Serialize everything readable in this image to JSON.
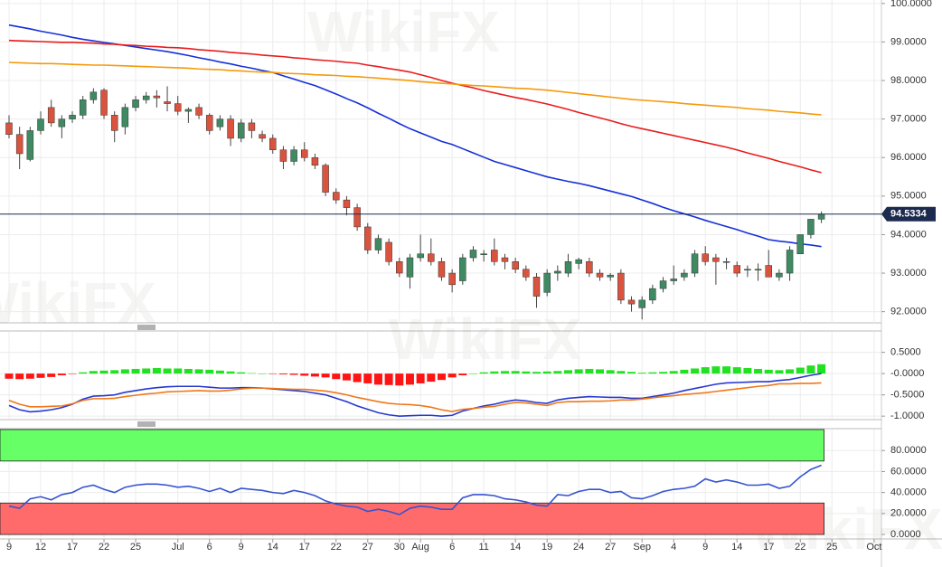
{
  "chart_data": [
    {
      "type": "candlestick",
      "categories": [
        "9",
        null,
        null,
        "12",
        null,
        null,
        "17",
        null,
        null,
        "22",
        null,
        null,
        "25",
        null,
        null,
        null,
        "Jul",
        null,
        null,
        "6",
        null,
        null,
        "9",
        null,
        null,
        "14",
        null,
        null,
        "17",
        null,
        null,
        "22",
        null,
        null,
        "27",
        null,
        null,
        "30",
        null,
        "Aug",
        null,
        null,
        "6",
        null,
        null,
        "11",
        null,
        null,
        "14",
        null,
        null,
        "19",
        null,
        null,
        "24",
        null,
        null,
        "27",
        null,
        null,
        "Sep",
        null,
        null,
        "4",
        null,
        null,
        "9",
        null,
        null,
        "14",
        null,
        null,
        "17",
        null,
        null,
        "22",
        null,
        null,
        "25",
        null,
        null,
        null,
        "Oct"
      ],
      "open": [
        96.9,
        96.6,
        95.95,
        96.7,
        97.3,
        96.8,
        97.0,
        97.1,
        97.5,
        97.75,
        97.1,
        96.8,
        97.3,
        97.5,
        97.6,
        97.45,
        97.4,
        97.2,
        97.3,
        97.1,
        96.8,
        97.0,
        96.5,
        96.9,
        96.6,
        96.5,
        96.2,
        95.9,
        96.2,
        96.0,
        95.8,
        95.1,
        94.9,
        94.7,
        94.2,
        93.6,
        93.8,
        93.3,
        92.9,
        93.4,
        93.5,
        93.3,
        93.0,
        92.8,
        93.4,
        93.5,
        93.6,
        93.4,
        93.3,
        93.1,
        92.9,
        92.5,
        93.0,
        93.0,
        93.25,
        93.3,
        93.0,
        92.9,
        93.0,
        92.3,
        92.1,
        92.3,
        92.6,
        92.8,
        92.9,
        93.0,
        93.5,
        93.4,
        93.3,
        93.2,
        93.1,
        93.1,
        93.2,
        92.9,
        93.0,
        93.5,
        94.0,
        94.4,
        null,
        null,
        null,
        null,
        null
      ],
      "high": [
        97.1,
        96.8,
        96.8,
        97.2,
        97.5,
        97.1,
        97.2,
        97.6,
        97.8,
        97.8,
        97.2,
        97.4,
        97.6,
        97.7,
        97.75,
        97.85,
        97.6,
        97.3,
        97.4,
        97.15,
        97.1,
        97.1,
        97.0,
        97.0,
        96.7,
        96.6,
        96.3,
        96.3,
        96.4,
        96.1,
        95.85,
        95.2,
        95.0,
        94.8,
        94.3,
        94.0,
        93.9,
        93.4,
        93.5,
        94.0,
        93.9,
        93.4,
        93.1,
        93.5,
        93.7,
        93.6,
        93.9,
        93.5,
        93.4,
        93.2,
        93.0,
        93.1,
        93.2,
        93.5,
        93.4,
        93.4,
        93.1,
        93.0,
        93.1,
        92.4,
        92.4,
        92.7,
        92.9,
        93.2,
        93.1,
        93.6,
        93.7,
        93.5,
        93.4,
        93.3,
        93.2,
        93.25,
        93.6,
        93.1,
        93.7,
        94.0,
        94.4,
        94.6,
        null,
        null,
        null,
        null,
        null
      ],
      "low": [
        96.5,
        95.7,
        95.9,
        96.6,
        96.8,
        96.5,
        96.9,
        97.0,
        97.4,
        97.0,
        96.4,
        96.6,
        97.2,
        97.4,
        97.3,
        97.2,
        97.1,
        96.9,
        97.0,
        96.6,
        96.7,
        96.3,
        96.4,
        96.5,
        96.4,
        96.1,
        95.7,
        95.8,
        95.9,
        95.7,
        95.0,
        94.8,
        94.5,
        94.1,
        93.5,
        93.5,
        93.2,
        92.9,
        92.6,
        93.3,
        93.2,
        92.8,
        92.5,
        92.7,
        93.3,
        93.3,
        93.2,
        93.1,
        93.0,
        92.8,
        92.1,
        92.4,
        92.8,
        92.9,
        93.1,
        92.9,
        92.8,
        92.8,
        92.2,
        92.0,
        91.8,
        92.2,
        92.5,
        92.7,
        92.8,
        92.9,
        93.2,
        92.7,
        93.1,
        92.9,
        92.9,
        92.8,
        92.9,
        92.8,
        92.8,
        93.5,
        93.9,
        94.3,
        null,
        null,
        null,
        null,
        null
      ],
      "close": [
        96.6,
        96.1,
        96.7,
        97.0,
        96.9,
        97.0,
        97.1,
        97.5,
        97.7,
        97.1,
        96.7,
        97.3,
        97.5,
        97.6,
        97.55,
        97.4,
        97.2,
        97.25,
        97.1,
        96.7,
        97.0,
        96.5,
        96.9,
        96.7,
        96.5,
        96.2,
        95.9,
        96.2,
        96.0,
        95.8,
        95.1,
        94.9,
        94.7,
        94.2,
        93.6,
        93.9,
        93.3,
        93.0,
        93.4,
        93.5,
        93.3,
        92.9,
        92.7,
        93.4,
        93.6,
        93.5,
        93.3,
        93.3,
        93.1,
        92.9,
        92.4,
        93.0,
        93.05,
        93.3,
        93.35,
        93.0,
        92.9,
        92.95,
        92.3,
        92.2,
        92.3,
        92.6,
        92.8,
        92.85,
        93.0,
        93.5,
        93.3,
        93.3,
        93.3,
        93.0,
        93.1,
        93.1,
        92.9,
        93.0,
        93.6,
        94.0,
        94.4,
        94.5334,
        null,
        null,
        null,
        null,
        null
      ],
      "up_color": "#3f8a62",
      "down_color": "#d9533f",
      "lines": [
        {
          "color": "#1530d8",
          "values": [
            99.44,
            99.39,
            99.34,
            99.28,
            99.23,
            99.18,
            99.12,
            99.07,
            99.03,
            98.99,
            98.95,
            98.91,
            98.87,
            98.83,
            98.79,
            98.75,
            98.7,
            98.65,
            98.59,
            98.54,
            98.48,
            98.43,
            98.37,
            98.32,
            98.26,
            98.21,
            98.12,
            98.04,
            97.95,
            97.87,
            97.76,
            97.65,
            97.53,
            97.42,
            97.29,
            97.15,
            97.02,
            96.88,
            96.75,
            96.64,
            96.53,
            96.42,
            96.34,
            96.23,
            96.12,
            96.01,
            95.9,
            95.82,
            95.74,
            95.66,
            95.58,
            95.5,
            95.44,
            95.38,
            95.33,
            95.27,
            95.2,
            95.13,
            95.06,
            94.99,
            94.9,
            94.81,
            94.71,
            94.62,
            94.54,
            94.46,
            94.37,
            94.29,
            94.21,
            94.13,
            94.04,
            93.96,
            93.87,
            93.83,
            93.8,
            93.76,
            93.73,
            93.69,
            null,
            null,
            null,
            null,
            null
          ]
        },
        {
          "color": "#e81c1c",
          "values": [
            99.04,
            99.03,
            99.02,
            99.01,
            99.0,
            98.99,
            98.99,
            98.98,
            98.97,
            98.95,
            98.94,
            98.92,
            98.91,
            98.89,
            98.88,
            98.86,
            98.85,
            98.83,
            98.8,
            98.78,
            98.76,
            98.73,
            98.71,
            98.69,
            98.66,
            98.64,
            98.62,
            98.59,
            98.57,
            98.54,
            98.52,
            98.5,
            98.47,
            98.45,
            98.4,
            98.36,
            98.31,
            98.27,
            98.22,
            98.15,
            98.08,
            98.0,
            97.93,
            97.87,
            97.81,
            97.74,
            97.68,
            97.62,
            97.56,
            97.51,
            97.45,
            97.39,
            97.32,
            97.25,
            97.17,
            97.1,
            97.03,
            96.96,
            96.88,
            96.81,
            96.75,
            96.69,
            96.63,
            96.57,
            96.51,
            96.45,
            96.39,
            96.33,
            96.27,
            96.2,
            96.12,
            96.05,
            95.98,
            95.9,
            95.83,
            95.76,
            95.68,
            95.61,
            null,
            null,
            null,
            null,
            null
          ]
        },
        {
          "color": "#f59a0a",
          "values": [
            98.47,
            98.46,
            98.45,
            98.44,
            98.44,
            98.43,
            98.42,
            98.41,
            98.4,
            98.4,
            98.39,
            98.38,
            98.37,
            98.36,
            98.35,
            98.34,
            98.33,
            98.32,
            98.3,
            98.29,
            98.28,
            98.26,
            98.25,
            98.23,
            98.22,
            98.21,
            98.19,
            98.18,
            98.17,
            98.15,
            98.14,
            98.13,
            98.11,
            98.1,
            98.08,
            98.06,
            98.04,
            98.02,
            98.0,
            97.97,
            97.95,
            97.93,
            97.91,
            97.89,
            97.87,
            97.86,
            97.84,
            97.82,
            97.8,
            97.79,
            97.77,
            97.75,
            97.72,
            97.69,
            97.66,
            97.63,
            97.6,
            97.57,
            97.54,
            97.51,
            97.49,
            97.47,
            97.45,
            97.43,
            97.4,
            97.38,
            97.36,
            97.34,
            97.32,
            97.3,
            97.27,
            97.25,
            97.23,
            97.2,
            97.18,
            97.16,
            97.13,
            97.11,
            null,
            null,
            null,
            null,
            null
          ]
        }
      ],
      "last_price": 94.5334,
      "last_price_color": "#1b2a4e",
      "ylim": [
        91.71,
        100.09
      ],
      "yticks": [
        {
          "value": 92,
          "label": "92.0000"
        },
        {
          "value": 93,
          "label": "93.0000"
        },
        {
          "value": 94,
          "label": "94.0000"
        },
        {
          "value": 95,
          "label": "95.0000"
        },
        {
          "value": 96,
          "label": "96.0000"
        },
        {
          "value": 97,
          "label": "97.0000"
        },
        {
          "value": 98,
          "label": "98.0000"
        },
        {
          "value": 99,
          "label": "99.0000"
        },
        {
          "value": 100,
          "label": "100.0000"
        }
      ],
      "grid": true
    },
    {
      "type": "macd",
      "histogram": {
        "up_color": "#22e022",
        "down_color": "#ff1414",
        "values": [
          -0.12,
          -0.13,
          -0.12,
          -0.1,
          -0.08,
          -0.04,
          -0.01,
          0.03,
          0.06,
          0.07,
          0.08,
          0.1,
          0.11,
          0.12,
          0.13,
          0.12,
          0.12,
          0.11,
          0.1,
          0.09,
          0.07,
          0.05,
          0.03,
          0.01,
          0.0,
          -0.01,
          -0.02,
          -0.03,
          -0.05,
          -0.07,
          -0.09,
          -0.13,
          -0.16,
          -0.2,
          -0.23,
          -0.26,
          -0.27,
          -0.28,
          -0.26,
          -0.23,
          -0.19,
          -0.15,
          -0.09,
          -0.04,
          0.0,
          0.03,
          0.05,
          0.06,
          0.06,
          0.05,
          0.04,
          0.05,
          0.06,
          0.08,
          0.1,
          0.11,
          0.1,
          0.08,
          0.06,
          0.04,
          0.02,
          0.03,
          0.04,
          0.06,
          0.09,
          0.12,
          0.15,
          0.17,
          0.17,
          0.15,
          0.13,
          0.11,
          0.09,
          0.08,
          0.1,
          0.14,
          0.19,
          0.22,
          null,
          null,
          null,
          null,
          null
        ]
      },
      "series": [
        {
          "color": "#2638d0",
          "values": [
            -0.75,
            -0.85,
            -0.9,
            -0.88,
            -0.85,
            -0.8,
            -0.72,
            -0.6,
            -0.53,
            -0.52,
            -0.5,
            -0.44,
            -0.4,
            -0.36,
            -0.33,
            -0.31,
            -0.3,
            -0.3,
            -0.3,
            -0.32,
            -0.34,
            -0.34,
            -0.33,
            -0.33,
            -0.34,
            -0.36,
            -0.38,
            -0.4,
            -0.42,
            -0.46,
            -0.5,
            -0.58,
            -0.66,
            -0.76,
            -0.84,
            -0.92,
            -0.97,
            -1.0,
            -0.99,
            -0.98,
            -0.98,
            -1.0,
            -0.98,
            -0.88,
            -0.82,
            -0.76,
            -0.72,
            -0.66,
            -0.62,
            -0.64,
            -0.68,
            -0.7,
            -0.62,
            -0.58,
            -0.56,
            -0.54,
            -0.55,
            -0.56,
            -0.56,
            -0.58,
            -0.58,
            -0.54,
            -0.5,
            -0.46,
            -0.4,
            -0.35,
            -0.3,
            -0.25,
            -0.22,
            -0.21,
            -0.2,
            -0.19,
            -0.19,
            -0.16,
            -0.14,
            -0.09,
            -0.04,
            0.0,
            null,
            null,
            null,
            null,
            null
          ]
        },
        {
          "color": "#f07818",
          "values": [
            -0.63,
            -0.72,
            -0.78,
            -0.78,
            -0.77,
            -0.76,
            -0.71,
            -0.63,
            -0.59,
            -0.59,
            -0.58,
            -0.54,
            -0.51,
            -0.48,
            -0.46,
            -0.43,
            -0.42,
            -0.41,
            -0.4,
            -0.41,
            -0.41,
            -0.39,
            -0.36,
            -0.34,
            -0.34,
            -0.35,
            -0.36,
            -0.37,
            -0.37,
            -0.39,
            -0.41,
            -0.45,
            -0.5,
            -0.56,
            -0.61,
            -0.66,
            -0.7,
            -0.72,
            -0.73,
            -0.75,
            -0.79,
            -0.85,
            -0.89,
            -0.84,
            -0.82,
            -0.79,
            -0.77,
            -0.72,
            -0.68,
            -0.69,
            -0.72,
            -0.75,
            -0.68,
            -0.66,
            -0.66,
            -0.65,
            -0.65,
            -0.64,
            -0.62,
            -0.62,
            -0.6,
            -0.57,
            -0.54,
            -0.52,
            -0.49,
            -0.47,
            -0.45,
            -0.42,
            -0.39,
            -0.36,
            -0.33,
            -0.3,
            -0.28,
            -0.24,
            -0.24,
            -0.23,
            -0.23,
            -0.22,
            null,
            null,
            null,
            null,
            null
          ]
        }
      ],
      "ylim": [
        -1.06,
        0.98
      ],
      "yticks": [
        {
          "value": -1,
          "label": "-1.0000"
        },
        {
          "value": -0.5,
          "label": "-0.5000"
        },
        {
          "value": 0,
          "label": "-0.0000"
        },
        {
          "value": 0.5,
          "label": "0.5000"
        }
      ],
      "grid": true
    },
    {
      "type": "line",
      "zones": [
        {
          "range": [
            70,
            100
          ],
          "color": "#66ff66"
        },
        {
          "range": [
            0,
            30
          ],
          "color": "#ff6b6b"
        }
      ],
      "series": [
        {
          "color": "#3553d0",
          "values": [
            27,
            25,
            34,
            36,
            33,
            38,
            40,
            45,
            47,
            43,
            40,
            45,
            47,
            48,
            48,
            47,
            45,
            46,
            44,
            41,
            44,
            40,
            44,
            43,
            42,
            40,
            39,
            42,
            40,
            37,
            32,
            29,
            27,
            26,
            22,
            24,
            22,
            19,
            25,
            27,
            26,
            24,
            24,
            35,
            38,
            38,
            37,
            34,
            33,
            31,
            28,
            27,
            38,
            37,
            41,
            43,
            43,
            40,
            41,
            35,
            34,
            37,
            41,
            43,
            44,
            46,
            53,
            50,
            52,
            50,
            47,
            47,
            48,
            44,
            46,
            55,
            62,
            66,
            null,
            null,
            null,
            null,
            null
          ]
        }
      ],
      "ylim": [
        -3.4,
        100
      ],
      "yticks": [
        {
          "value": 0,
          "label": "0.0000"
        },
        {
          "value": 20,
          "label": "20.0000"
        },
        {
          "value": 40,
          "label": "40.0000"
        },
        {
          "value": 60,
          "label": "60.0000"
        },
        {
          "value": 80,
          "label": "80.0000"
        }
      ],
      "grid": true
    }
  ],
  "watermark": "WikiFX"
}
